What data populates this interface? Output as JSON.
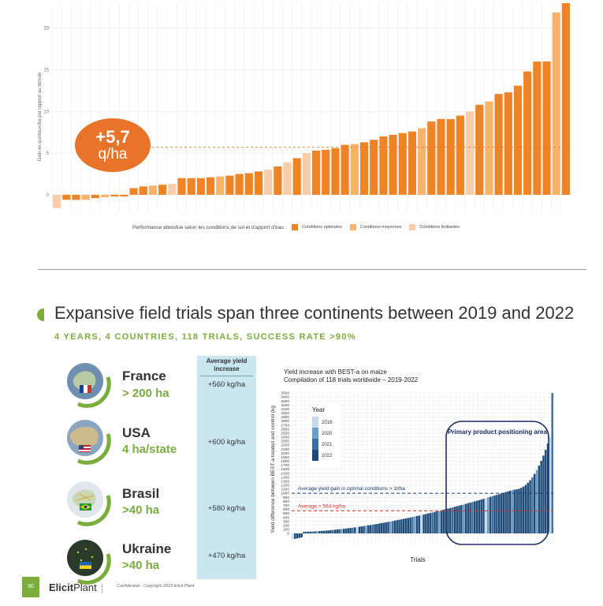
{
  "top_chart": {
    "ylabel": "Gain en quintaux/ha par rapport au témoin",
    "ticks": [
      "0",
      "5",
      "10",
      "15",
      "20"
    ],
    "average_label": {
      "value": "+5,7",
      "unit": "q/ha"
    },
    "legend": {
      "title": "Performance attendue selon les conditions de sol et d'apport d'eau :",
      "items": [
        {
          "label": "Conditions optimales",
          "color": "#ee8425"
        },
        {
          "label": "Conditions moyennes",
          "color": "#f6b36c"
        },
        {
          "label": "Conditions limitantes",
          "color": "#f9ccaa"
        }
      ]
    }
  },
  "section": {
    "title": "Expansive field trials span three continents between 2019 and 2022",
    "subtitle": "4 YEARS, 4 COUNTRIES, 118 TRIALS, SUCCESS RATE >90%"
  },
  "countries": [
    {
      "name": "France",
      "area": "> 200 ha",
      "yield": "+560 kg/ha",
      "globe_color": "#6f8fb0",
      "flag": [
        "#1f3f99",
        "#ffffff",
        "#d62d2d"
      ]
    },
    {
      "name": "USA",
      "area": "4 ha/state",
      "yield": "+600 kg/ha",
      "globe_color": "#8aa5c0",
      "flag": [
        "#b22234",
        "#ffffff",
        "#3c3b6e"
      ]
    },
    {
      "name": "Brasil",
      "area": ">40 ha",
      "yield": "+580 kg/ha",
      "globe_color": "#d6dfe6",
      "flag": [
        "#1f9a3a",
        "#f7d21a",
        "#2a3c8c"
      ]
    },
    {
      "name": "Ukraine",
      "area": ">40 ha",
      "yield": "+470 kg/ha",
      "globe_color": "#2a3b2a",
      "flag": [
        "#1f5fbf",
        "#f3d21a",
        "#1f5fbf"
      ]
    }
  ],
  "yield_column": {
    "header": "Average yield increase"
  },
  "bottom_chart": {
    "title_line1": "Yield increase with BEST-a on maize",
    "title_line2": "Compilation of 118 trials worldwide – 2019-2022",
    "ylabel": "Yield difference between BEST-a treated and control (kg",
    "xlabel": "Trials",
    "ticks": [
      "0",
      "100",
      "200",
      "300",
      "400",
      "500",
      "600",
      "700",
      "800",
      "900",
      "1000",
      "1100",
      "1200",
      "1300",
      "1400",
      "1500",
      "1600",
      "1700",
      "1800",
      "1900",
      "2000",
      "2100",
      "2200",
      "2300",
      "2400",
      "2500",
      "2600",
      "2700",
      "2800",
      "2900",
      "3000",
      "3100",
      "3200",
      "3300",
      "3400",
      "3500"
    ],
    "legend_title": "Year",
    "legend_items": [
      {
        "label": "2019",
        "color": "#c3d9ec"
      },
      {
        "label": "2020",
        "color": "#6a9ec9"
      },
      {
        "label": "2021",
        "color": "#3a6f9e"
      },
      {
        "label": "2022",
        "color": "#1c4a78"
      }
    ],
    "annotation_optimal": "Average yield gain in optimal conditions > 1t/ha",
    "annotation_average": "Average = 564 kg/ha",
    "highlight_label": "Primary product positioning area"
  },
  "footer": {
    "page_number": "90",
    "logo_left": "Elicit",
    "logo_right": "Plant",
    "confidential": "Confidential - Copyright 2023 Elicit Plant"
  },
  "chart_data": [
    {
      "type": "bar",
      "ylabel": "Gain en quintaux/ha par rapport au témoin",
      "ylim": [
        -2,
        23
      ],
      "average": 5.7,
      "series": [
        {
          "name": "Conditions optimales",
          "values": [
            -1.6,
            -0.6,
            -0.6,
            -0.6,
            -0.4,
            -0.3,
            -0.2,
            -0.2,
            0.8,
            1,
            1.1,
            1.2,
            1.3,
            2,
            2,
            2,
            2.1,
            2.2,
            2.3,
            2.5,
            2.6,
            2.8,
            3,
            3.4,
            3.9,
            4.4,
            5,
            5.3,
            5.4,
            5.6,
            6,
            6.1,
            6.3,
            6.6,
            7,
            7.2,
            7.4,
            7.6,
            8,
            8.8,
            9.1,
            9.1,
            9.5,
            10,
            10.8,
            11.2,
            12.1,
            12.3,
            13.1,
            14.8,
            16,
            16,
            21.9,
            23
          ]
        }
      ],
      "legend": "bottom"
    },
    {
      "type": "bar",
      "title": "Yield increase with BEST-a on maize\nCompilation of 118 trials worldwide – 2019-2022",
      "xlabel": "Trials",
      "ylabel": "Yield difference between BEST-a treated and control (kg",
      "ylim": [
        0,
        3500
      ],
      "average": 564,
      "optimal_threshold": 1000,
      "n_trials": 118,
      "max_value": 3500,
      "legend": "top-left"
    }
  ]
}
